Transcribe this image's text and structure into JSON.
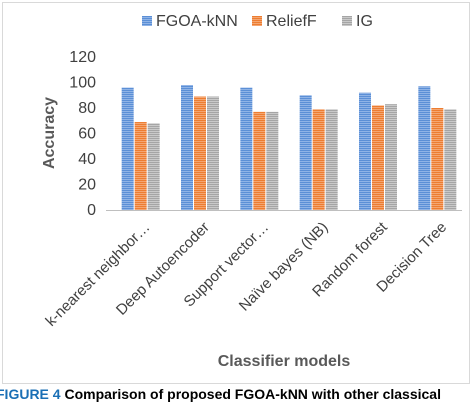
{
  "chart_data": {
    "type": "bar",
    "title": "",
    "xlabel": "Classifier models",
    "ylabel": "Accuracy",
    "ylim": [
      0,
      120
    ],
    "yticks": [
      0,
      20,
      40,
      60,
      80,
      100,
      120
    ],
    "legend_position": "top",
    "categories": [
      "k-nearest neighbor…",
      "Deep Autoencoder",
      "Support vector…",
      "Naïve bayes (NB)",
      "Random forest",
      "Decision Tree"
    ],
    "series": [
      {
        "name": "FGOA-kNN",
        "color": "#5b8fd6",
        "values": [
          96,
          98,
          96,
          90,
          92,
          97
        ]
      },
      {
        "name": "ReliefF",
        "color": "#ed7d31",
        "values": [
          69,
          89,
          77,
          79,
          82,
          80
        ]
      },
      {
        "name": "IG",
        "color": "#a5a5a5",
        "values": [
          68,
          89,
          77,
          79,
          83,
          79
        ]
      }
    ]
  },
  "caption": {
    "label": "FIGURE 4",
    "text": "Comparison of proposed FGOA-kNN with other classical"
  }
}
